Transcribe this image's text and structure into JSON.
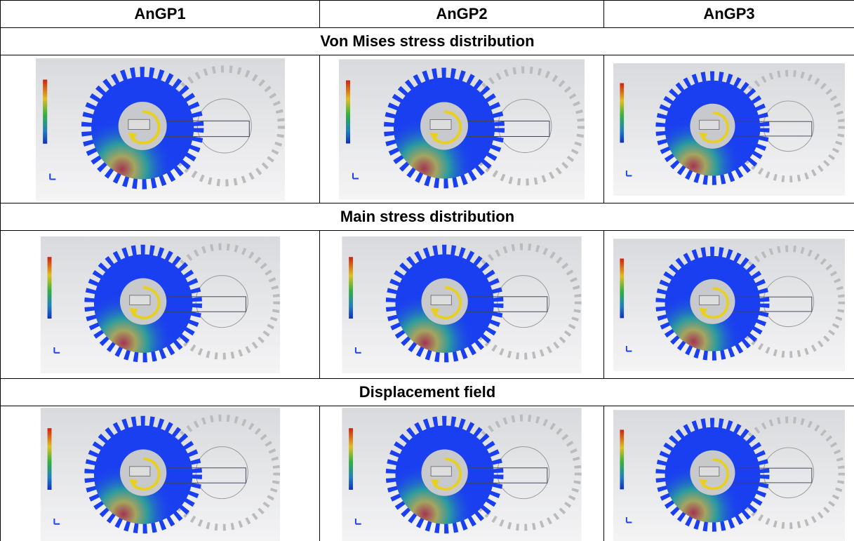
{
  "table": {
    "columns": [
      "AnGP1",
      "AnGP2",
      "AnGP3"
    ],
    "sections": [
      "Von Mises stress distribution",
      "Main stress distribution",
      "Displacement field"
    ]
  }
}
